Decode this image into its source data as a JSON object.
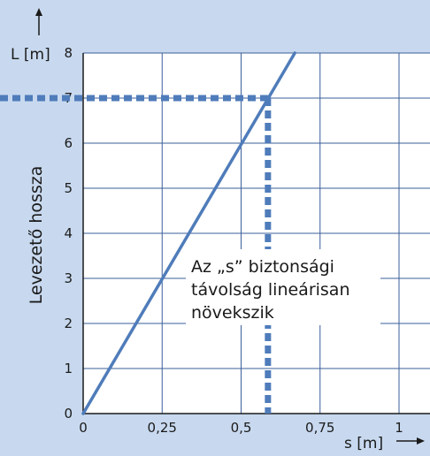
{
  "chart_data": {
    "type": "line",
    "title": "",
    "xlabel": "s [m]",
    "ylabel": "Levezető hossza",
    "y_axis_top_label": "L [m]",
    "xlim": [
      0,
      1.05
    ],
    "ylim": [
      0,
      8
    ],
    "x_ticks": [
      0,
      0.25,
      0.5,
      0.75,
      1
    ],
    "x_tick_labels": [
      "0",
      "0,25",
      "0,5",
      "0,75",
      "1"
    ],
    "y_ticks": [
      0,
      1,
      2,
      3,
      4,
      5,
      6,
      7,
      8
    ],
    "y_tick_labels": [
      "0",
      "1",
      "2",
      "3",
      "4",
      "5",
      "6",
      "7",
      "8"
    ],
    "grid": true,
    "series": [
      {
        "x": [
          0,
          0.67
        ],
        "y": [
          0,
          8
        ],
        "color": "#4f7cba"
      }
    ],
    "reference_lines": {
      "y_value": 7,
      "x_value": 0.585,
      "color": "#4f7cba",
      "style": "dotted"
    },
    "annotation_lines": [
      "Az „s” biztonsági",
      "távolság lineárisan",
      "növekszik"
    ],
    "colors": {
      "background": "#c8d9ef",
      "plot_background": "#ffffff",
      "grid": "#3a5f9a",
      "line": "#4f7cba"
    }
  }
}
